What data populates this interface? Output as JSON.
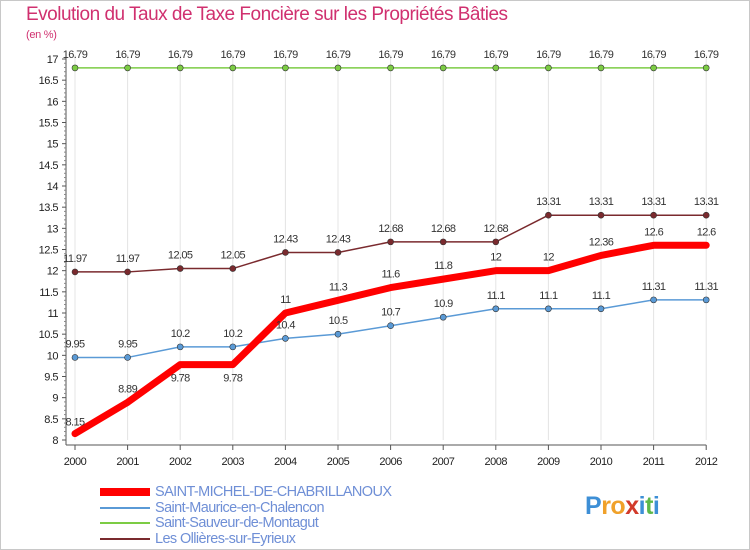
{
  "title": "Evolution du Taux de Taxe Foncière sur les Propriétés Bâties",
  "unit_label": "(en %)",
  "logo": {
    "letters": [
      "P",
      "r",
      "o",
      "x",
      "i",
      "t",
      "i"
    ],
    "colors": [
      "#3d8fd6",
      "#f0a12a",
      "#f0a12a",
      "#d23a2a",
      "#3d8fd6",
      "#5db84a",
      "#3d8fd6"
    ]
  },
  "chart_data": {
    "type": "line",
    "title": "Evolution du Taux de Taxe Foncière sur les Propriétés Bâties",
    "ylabel": "(en %)",
    "xlabel": "",
    "ylim": [
      8,
      17
    ],
    "y_major_step": 0.5,
    "x": [
      "2000",
      "2001",
      "2002",
      "2003",
      "2004",
      "2005",
      "2006",
      "2007",
      "2008",
      "2009",
      "2010",
      "2011",
      "2012"
    ],
    "y_ticks": [
      "8",
      "8.5",
      "9",
      "9.5",
      "10",
      "10.5",
      "11",
      "11.5",
      "12",
      "12.5",
      "13",
      "13.5",
      "14",
      "14.5",
      "15",
      "15.5",
      "16",
      "16.5",
      "17"
    ],
    "series": [
      {
        "name": "SAINT-MICHEL-DE-CHABRILLANOUX",
        "color": "#ff0000",
        "values": [
          8.15,
          8.89,
          9.78,
          9.78,
          11,
          11.3,
          11.6,
          11.8,
          12,
          12,
          12.36,
          12.6,
          12.6
        ],
        "labels": [
          "8.15",
          "8.89",
          "9.78",
          "9.78",
          "11",
          "11.3",
          "11.6",
          "11.8",
          "12",
          "12",
          "12.36",
          "12.6",
          "12.6"
        ]
      },
      {
        "name": "Saint-Maurice-en-Chalencon",
        "color": "#5a9ad6",
        "values": [
          9.95,
          9.95,
          10.2,
          10.2,
          10.4,
          10.5,
          10.7,
          10.9,
          11.1,
          11.1,
          11.1,
          11.31,
          11.31
        ],
        "labels": [
          "9.95",
          "9.95",
          "10.2",
          "10.2",
          "10.4",
          "10.5",
          "10.7",
          "10.9",
          "11.1",
          "11.1",
          "11.1",
          "11.31",
          "11.31"
        ]
      },
      {
        "name": "Saint-Sauveur-de-Montagut",
        "color": "#7ccc44",
        "values": [
          16.79,
          16.79,
          16.79,
          16.79,
          16.79,
          16.79,
          16.79,
          16.79,
          16.79,
          16.79,
          16.79,
          16.79,
          16.79
        ],
        "labels": [
          "16.79",
          "16.79",
          "16.79",
          "16.79",
          "16.79",
          "16.79",
          "16.79",
          "16.79",
          "16.79",
          "16.79",
          "16.79",
          "16.79",
          "16.79"
        ]
      },
      {
        "name": "Les Ollières-sur-Eyrieux",
        "color": "#7a2a2e",
        "values": [
          11.97,
          11.97,
          12.05,
          12.05,
          12.43,
          12.43,
          12.68,
          12.68,
          12.68,
          13.31,
          13.31,
          13.31,
          13.31
        ],
        "labels": [
          "11.97",
          "11.97",
          "12.05",
          "12.05",
          "12.43",
          "12.43",
          "12.68",
          "12.68",
          "12.68",
          "13.31",
          "13.31",
          "13.31",
          "13.31"
        ]
      }
    ],
    "legend": [
      "SAINT-MICHEL-DE-CHABRILLANOUX",
      "Saint-Maurice-en-Chalencon",
      "Saint-Sauveur-de-Montagut",
      "Les Ollières-sur-Eyrieux"
    ],
    "legend_position": "bottom-left"
  }
}
